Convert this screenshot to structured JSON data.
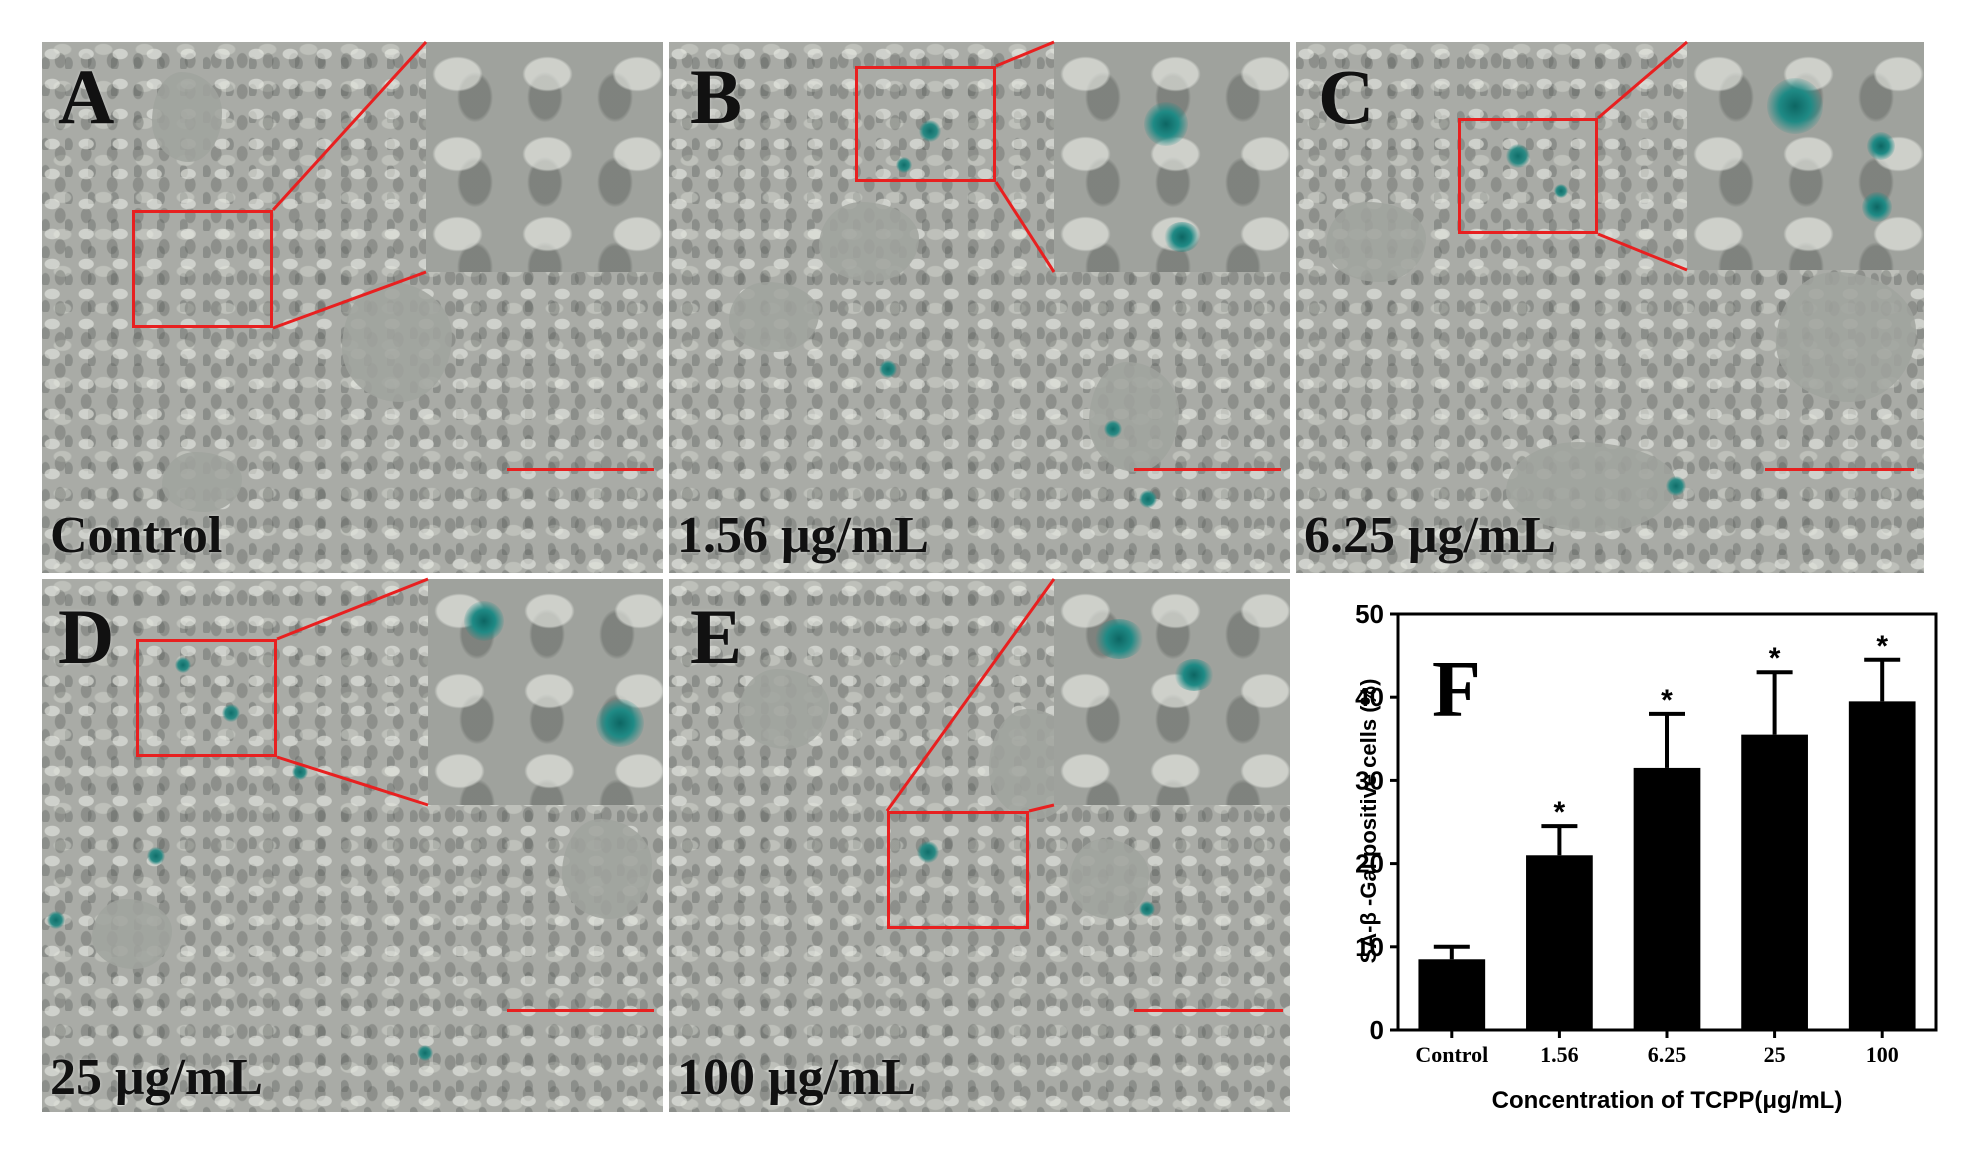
{
  "panels": [
    {
      "letter": "A",
      "label": "Control"
    },
    {
      "letter": "B",
      "label": "1.56 μg/mL"
    },
    {
      "letter": "C",
      "label": "6.25 μg/mL"
    },
    {
      "letter": "D",
      "label": "25 μg/mL"
    },
    {
      "letter": "E",
      "label": "100 μg/mL"
    }
  ],
  "colors": {
    "roi": "#e82020",
    "stain": "#1f8a85",
    "bar": "#000000"
  },
  "chart_data": {
    "type": "bar",
    "panel_letter": "F",
    "categories": [
      "Control",
      "1.56",
      "6.25",
      "25",
      "100"
    ],
    "values": [
      8.5,
      21,
      31.5,
      35.5,
      39.5
    ],
    "errors": [
      1.5,
      3.5,
      6.5,
      7.5,
      5
    ],
    "significance": [
      "",
      "*",
      "*",
      "*",
      "*"
    ],
    "xlabel": "Concentration of TCPP(μg/mL)",
    "ylabel": "SA-β -Gal positive cells (%)",
    "ylim": [
      0,
      50
    ],
    "yticks": [
      0,
      10,
      20,
      30,
      40,
      50
    ],
    "grid": false
  }
}
